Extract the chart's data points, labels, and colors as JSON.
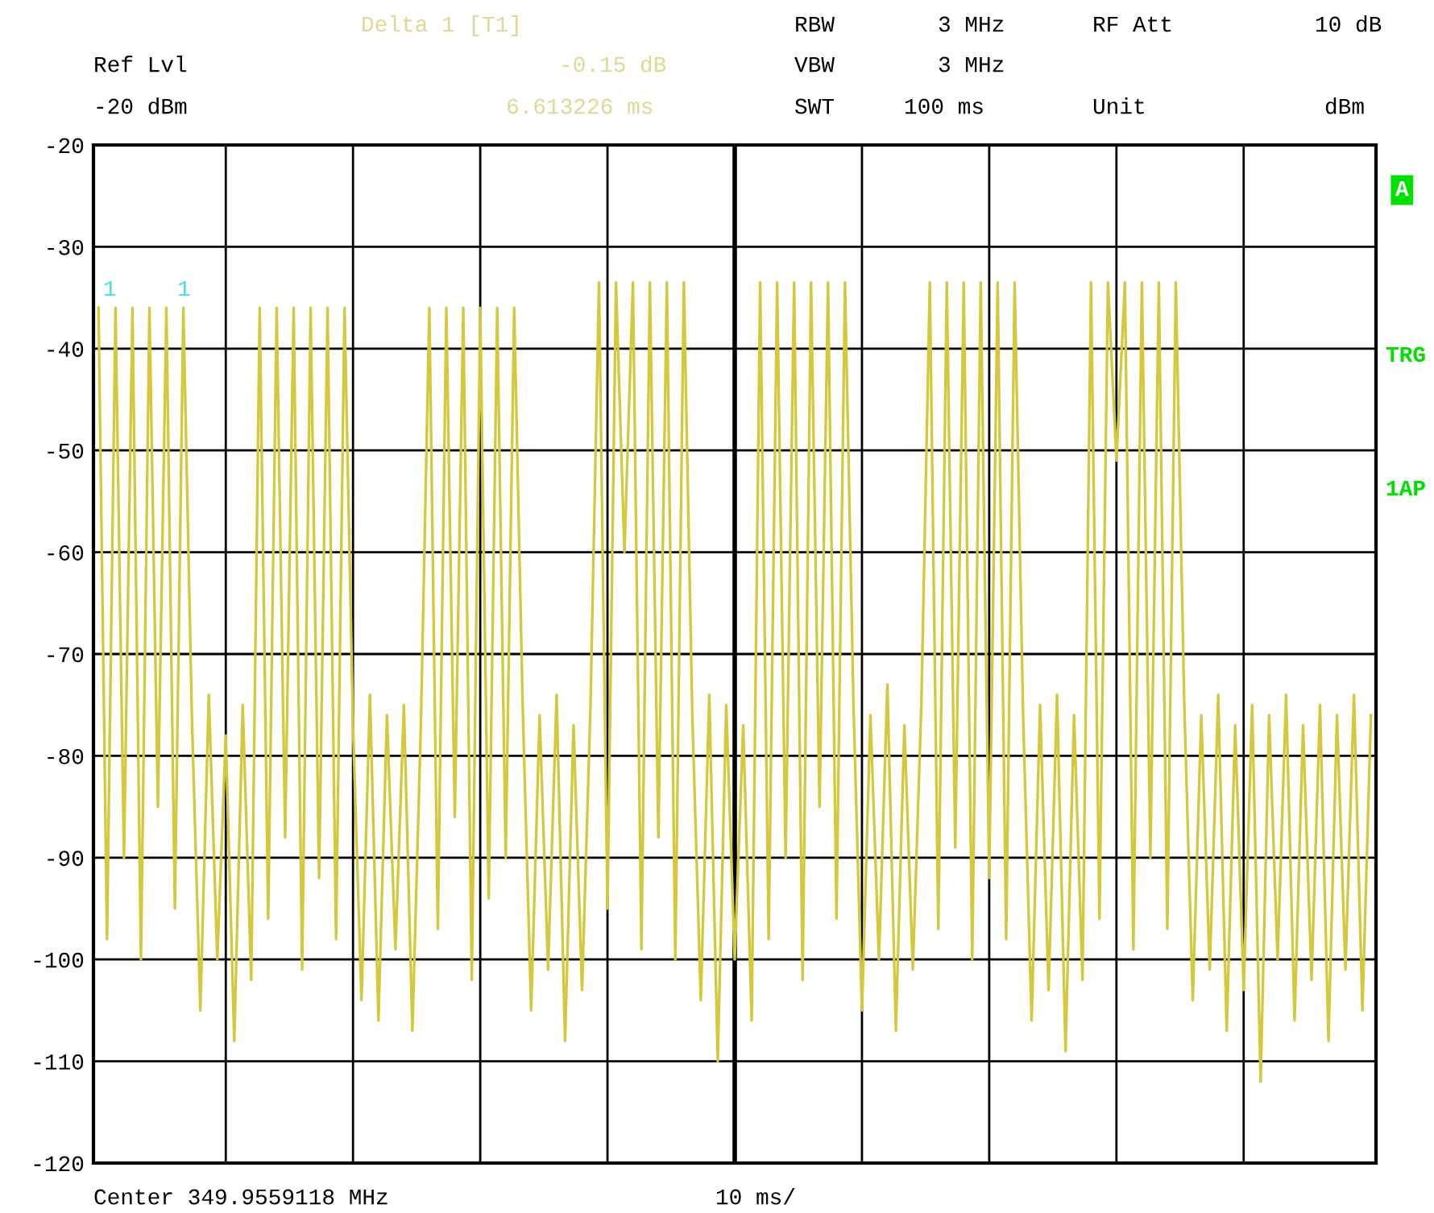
{
  "chart_data": {
    "type": "line",
    "annotations": [
      "Delta 1 [T1]",
      "RBW",
      "3 MHz",
      "RF Att",
      "10 dB",
      "Ref Lvl",
      "-0.15 dB",
      "VBW",
      "3 MHz",
      "-20 dBm",
      "6.613226 ms",
      "SWT",
      "100 ms",
      "Unit",
      "dBm",
      "A",
      "TRG",
      "1AP",
      "Center 349.9559118 MHz",
      "10 ms/",
      "1",
      "1"
    ],
    "categories": [
      null,
      null,
      null,
      null,
      null,
      null,
      null,
      null,
      null,
      null,
      null,
      null,
      null,
      null,
      null,
      null,
      null,
      null,
      null,
      null,
      null,
      null,
      null,
      null,
      null,
      null,
      null,
      null,
      null,
      null,
      null,
      null,
      null,
      null,
      null,
      null,
      null,
      null,
      null,
      null,
      null,
      null,
      null,
      null,
      null,
      null,
      null,
      null,
      null,
      null,
      null,
      null,
      null,
      null,
      null,
      null,
      null,
      null,
      null,
      null,
      null,
      null,
      null,
      null,
      null,
      null,
      null,
      null,
      null,
      null,
      null,
      null,
      null,
      null,
      null,
      null,
      null,
      null,
      null,
      null,
      null,
      null,
      null,
      null,
      null,
      null,
      null,
      null,
      null,
      null,
      null,
      null,
      null,
      null,
      null,
      null,
      null,
      null,
      null,
      null,
      null,
      null,
      null,
      null,
      null,
      null,
      null,
      null,
      null,
      null,
      null,
      null,
      null,
      null,
      null,
      null,
      null,
      null,
      null,
      null,
      null,
      null,
      null,
      null,
      null,
      null,
      null,
      null,
      null,
      null,
      null,
      null,
      null,
      null,
      null,
      null,
      null,
      null,
      null,
      null,
      null,
      null,
      null,
      null,
      null,
      null,
      null,
      null,
      null,
      null,
      null
    ],
    "series": [
      {
        "color": "#d4c83c",
        "values": [
          -36,
          -98,
          -36,
          -90,
          -36,
          -100,
          -36,
          -85,
          -36,
          -95,
          -36,
          -76,
          -105,
          -74,
          -100,
          -78,
          -108,
          -75,
          -102,
          -36,
          -96,
          -36,
          -88,
          -36,
          -101,
          -36,
          -92,
          -36,
          -98,
          -36,
          -77,
          -104,
          -74,
          -106,
          -76,
          -99,
          -75,
          -107,
          -77,
          -36,
          -97,
          -36,
          -86,
          -36,
          -102,
          -36,
          -94,
          -36,
          -90,
          -36,
          -75,
          -105,
          -76,
          -101,
          -74,
          -108,
          -77,
          -103,
          -75,
          -33.5,
          -95,
          -33.5,
          -60,
          -33.5,
          -99,
          -33.5,
          -88,
          -33.5,
          -100,
          -33.5,
          -76,
          -104,
          -74,
          -110,
          -75,
          -100,
          -77,
          -106,
          -33.5,
          -98,
          -33.5,
          -90,
          -33.5,
          -102,
          -33.5,
          -85,
          -33.5,
          -96,
          -33.5,
          -75,
          -105,
          -76,
          -100,
          -73,
          -107,
          -77,
          -101,
          -75,
          -33.5,
          -97,
          -33.5,
          -89,
          -33.5,
          -100,
          -33.5,
          -92,
          -33.5,
          -98,
          -33.5,
          -76,
          -106,
          -75,
          -103,
          -74,
          -109,
          -76,
          -102,
          -33.5,
          -96,
          -33.5,
          -51,
          -33.5,
          -99,
          -33.5,
          -90,
          -33.5,
          -97,
          -33.5,
          -75,
          -104,
          -76,
          -101,
          -74,
          -107,
          -77,
          -103,
          -75,
          -112,
          -76,
          -100,
          -74,
          -106,
          -77,
          -102,
          -75,
          -108,
          -76,
          -101,
          -74,
          -105,
          -76
        ]
      }
    ],
    "ylim": [
      -120,
      -20
    ],
    "yticks": [
      -20,
      -30,
      -40,
      -50,
      -60,
      -70,
      -80,
      -90,
      -100,
      -110,
      -120
    ],
    "grid": true,
    "line_style": "solid",
    "marker": "none"
  }
}
